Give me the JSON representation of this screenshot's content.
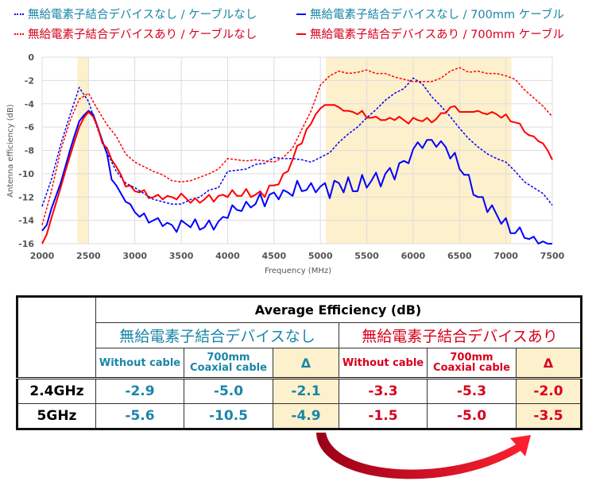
{
  "legend": [
    {
      "label": "無給電素子結合デバイスなし / ケーブルなし",
      "color": "#0000ff",
      "text_color": "#1a86a8",
      "style": "dashed"
    },
    {
      "label": "無給電素子結合デバイスなし / 700mm ケーブル",
      "color": "#0000ff",
      "text_color": "#1a86a8",
      "style": "solid"
    },
    {
      "label": "無給電素子結合デバイスあり / ケーブルなし",
      "color": "#ff0000",
      "text_color": "#d8001c",
      "style": "dashed"
    },
    {
      "label": "無給電素子結合デバイスあり / 700mm ケーブル",
      "color": "#ff0000",
      "text_color": "#d8001c",
      "style": "solid"
    }
  ],
  "chart_data": {
    "type": "line",
    "xlabel": "Frequency (MHz)",
    "ylabel": "Antenna efficiency (dB)",
    "xlim": [
      2000,
      7500
    ],
    "ylim": [
      -16,
      0
    ],
    "x_ticks": [
      "2000",
      "2500",
      "3000",
      "3500",
      "4000",
      "4500",
      "5000",
      "5500",
      "6000",
      "6500",
      "7000",
      "7500"
    ],
    "y_ticks": [
      "0",
      "-2",
      "-4",
      "-6",
      "-8",
      "-10",
      "-12",
      "-14",
      "-16"
    ],
    "grid": true,
    "legend_position": "top",
    "highlight_bands": [
      [
        2380,
        2500
      ],
      [
        5060,
        7060
      ]
    ],
    "highlight_color": "#fdf0cc",
    "series": [
      {
        "name": "無給電素子結合デバイスなし / ケーブルなし",
        "color": "#0000ff",
        "style": "dashed",
        "x": [
          2000,
          2100,
          2200,
          2300,
          2400,
          2500,
          2600,
          2700,
          2800,
          2900,
          3000,
          3100,
          3200,
          3300,
          3400,
          3500,
          3600,
          3700,
          3800,
          3900,
          4000,
          4100,
          4200,
          4300,
          4400,
          4500,
          4600,
          4700,
          4800,
          4900,
          5000,
          5100,
          5200,
          5300,
          5400,
          5500,
          5600,
          5700,
          5800,
          5900,
          6000,
          6100,
          6200,
          6300,
          6400,
          6500,
          6600,
          6700,
          6800,
          6900,
          7000,
          7100,
          7200,
          7300,
          7400,
          7500
        ],
        "y": [
          -12.8,
          -10.5,
          -7.5,
          -5.0,
          -2.6,
          -3.8,
          -6.2,
          -8.2,
          -9.8,
          -10.8,
          -11.2,
          -11.7,
          -12.2,
          -12.4,
          -12.6,
          -12.6,
          -12.2,
          -12.0,
          -11.4,
          -11.2,
          -9.8,
          -9.7,
          -9.6,
          -9.2,
          -9.1,
          -8.6,
          -8.7,
          -8.7,
          -8.8,
          -9.0,
          -8.6,
          -8.2,
          -7.3,
          -6.6,
          -6.0,
          -5.2,
          -4.5,
          -3.7,
          -3.1,
          -2.7,
          -1.8,
          -2.3,
          -3.4,
          -4.2,
          -5.1,
          -6.1,
          -7.0,
          -7.7,
          -8.3,
          -8.7,
          -9.0,
          -9.8,
          -10.7,
          -11.2,
          -11.7,
          -12.7
        ]
      },
      {
        "name": "無給電素子結合デバイスなし / 700mm ケーブル",
        "color": "#0000ff",
        "style": "solid",
        "x": [
          2000,
          2050,
          2100,
          2150,
          2200,
          2250,
          2300,
          2350,
          2400,
          2450,
          2500,
          2550,
          2600,
          2650,
          2700,
          2750,
          2800,
          2850,
          2900,
          2950,
          3000,
          3050,
          3100,
          3150,
          3200,
          3250,
          3300,
          3350,
          3400,
          3450,
          3500,
          3550,
          3600,
          3650,
          3700,
          3750,
          3800,
          3850,
          3900,
          3950,
          4000,
          4050,
          4100,
          4150,
          4200,
          4250,
          4300,
          4350,
          4400,
          4450,
          4500,
          4550,
          4600,
          4650,
          4700,
          4750,
          4800,
          4850,
          4900,
          4950,
          5000,
          5050,
          5100,
          5150,
          5200,
          5250,
          5300,
          5350,
          5400,
          5450,
          5500,
          5550,
          5600,
          5650,
          5700,
          5750,
          5800,
          5850,
          5900,
          5950,
          6000,
          6050,
          6100,
          6150,
          6200,
          6250,
          6300,
          6350,
          6400,
          6450,
          6500,
          6550,
          6600,
          6650,
          6700,
          6750,
          6800,
          6850,
          6900,
          6950,
          7000,
          7050,
          7100,
          7150,
          7200,
          7250,
          7300,
          7350,
          7400,
          7450,
          7500
        ],
        "y": [
          -14.9,
          -14.4,
          -13.0,
          -11.9,
          -10.8,
          -9.4,
          -8.0,
          -6.7,
          -5.5,
          -5.0,
          -4.6,
          -4.9,
          -6.0,
          -7.2,
          -8.3,
          -10.5,
          -11.0,
          -11.7,
          -12.4,
          -12.6,
          -13.3,
          -13.7,
          -13.4,
          -14.2,
          -14.0,
          -13.8,
          -14.5,
          -14.2,
          -14.4,
          -15.0,
          -14.0,
          -14.3,
          -14.6,
          -13.9,
          -14.8,
          -14.6,
          -14.0,
          -14.8,
          -14.1,
          -13.7,
          -13.8,
          -12.7,
          -13.1,
          -13.2,
          -12.4,
          -12.9,
          -12.6,
          -11.7,
          -12.8,
          -11.8,
          -11.6,
          -12.2,
          -11.4,
          -11.6,
          -11.9,
          -10.6,
          -11.5,
          -11.4,
          -10.8,
          -11.6,
          -11.1,
          -10.8,
          -12.1,
          -10.6,
          -10.8,
          -11.6,
          -10.3,
          -11.5,
          -11.5,
          -10.1,
          -11.2,
          -10.6,
          -9.9,
          -11.1,
          -10.0,
          -9.5,
          -10.5,
          -9.1,
          -8.9,
          -9.1,
          -7.9,
          -7.3,
          -7.8,
          -7.1,
          -7.1,
          -7.7,
          -7.2,
          -7.7,
          -8.7,
          -8.2,
          -9.6,
          -10.1,
          -10.1,
          -11.8,
          -12.0,
          -12.0,
          -13.3,
          -12.7,
          -13.5,
          -14.3,
          -13.8,
          -15.1,
          -15.1,
          -14.6,
          -15.5,
          -15.6,
          -15.4,
          -16.0,
          -15.8,
          -16.0,
          -16.0
        ]
      },
      {
        "name": "無給電素子結合デバイスあり / ケーブルなし",
        "color": "#ff0000",
        "style": "dashed",
        "x": [
          2000,
          2100,
          2200,
          2300,
          2400,
          2500,
          2600,
          2700,
          2800,
          2900,
          3000,
          3100,
          3200,
          3300,
          3400,
          3500,
          3600,
          3700,
          3800,
          3900,
          4000,
          4100,
          4200,
          4300,
          4400,
          4500,
          4600,
          4700,
          4800,
          4900,
          5000,
          5100,
          5200,
          5300,
          5400,
          5500,
          5600,
          5700,
          5800,
          5900,
          6000,
          6100,
          6200,
          6300,
          6400,
          6500,
          6600,
          6700,
          6800,
          6900,
          7000,
          7100,
          7200,
          7300,
          7400,
          7500
        ],
        "y": [
          -14.4,
          -11.5,
          -8.0,
          -5.5,
          -3.6,
          -3.1,
          -4.5,
          -5.8,
          -6.8,
          -8.3,
          -9.0,
          -9.4,
          -9.8,
          -10.1,
          -10.6,
          -10.7,
          -10.6,
          -10.3,
          -10.0,
          -9.6,
          -8.7,
          -8.8,
          -8.9,
          -8.8,
          -8.9,
          -9.0,
          -8.6,
          -7.8,
          -6.2,
          -4.6,
          -2.4,
          -1.6,
          -1.2,
          -1.4,
          -1.3,
          -1.1,
          -1.4,
          -1.4,
          -1.7,
          -1.9,
          -2.1,
          -2.1,
          -2.1,
          -1.8,
          -1.2,
          -0.9,
          -1.3,
          -1.2,
          -1.4,
          -1.4,
          -1.6,
          -1.9,
          -2.8,
          -3.5,
          -4.2,
          -5.1
        ]
      },
      {
        "name": "無給電素子結合デバイスあり / 700mm ケーブル",
        "color": "#ff0000",
        "style": "solid",
        "x": [
          2000,
          2050,
          2100,
          2150,
          2200,
          2250,
          2300,
          2350,
          2400,
          2450,
          2500,
          2550,
          2600,
          2650,
          2700,
          2750,
          2800,
          2850,
          2900,
          2950,
          3000,
          3050,
          3100,
          3150,
          3200,
          3250,
          3300,
          3350,
          3400,
          3450,
          3500,
          3550,
          3600,
          3650,
          3700,
          3750,
          3800,
          3850,
          3900,
          3950,
          4000,
          4050,
          4100,
          4150,
          4200,
          4250,
          4300,
          4350,
          4400,
          4450,
          4500,
          4550,
          4600,
          4650,
          4700,
          4750,
          4800,
          4850,
          4900,
          4950,
          5000,
          5050,
          5100,
          5150,
          5200,
          5250,
          5300,
          5350,
          5400,
          5450,
          5500,
          5550,
          5600,
          5650,
          5700,
          5750,
          5800,
          5850,
          5900,
          5950,
          6000,
          6050,
          6100,
          6150,
          6200,
          6250,
          6300,
          6350,
          6400,
          6450,
          6500,
          6550,
          6600,
          6650,
          6700,
          6750,
          6800,
          6850,
          6900,
          6950,
          7000,
          7050,
          7100,
          7150,
          7200,
          7250,
          7300,
          7350,
          7400,
          7450,
          7500
        ],
        "y": [
          -16.0,
          -15.2,
          -13.8,
          -12.5,
          -11.2,
          -9.8,
          -8.5,
          -7.2,
          -6.0,
          -5.2,
          -4.7,
          -5.1,
          -6.0,
          -7.4,
          -7.8,
          -8.8,
          -9.4,
          -10.1,
          -11.1,
          -11.0,
          -11.5,
          -11.6,
          -11.4,
          -12.1,
          -12.0,
          -11.8,
          -12.2,
          -11.9,
          -12.0,
          -12.2,
          -11.7,
          -12.1,
          -12.5,
          -12.1,
          -12.5,
          -12.2,
          -11.8,
          -12.4,
          -11.9,
          -11.8,
          -12.0,
          -11.4,
          -11.9,
          -11.9,
          -11.3,
          -12.0,
          -11.8,
          -11.5,
          -12.0,
          -11.0,
          -11.0,
          -10.9,
          -10.0,
          -9.8,
          -8.8,
          -7.6,
          -7.4,
          -6.2,
          -5.7,
          -4.9,
          -4.4,
          -4.1,
          -4.1,
          -4.1,
          -4.3,
          -4.6,
          -4.6,
          -4.7,
          -4.9,
          -4.6,
          -5.2,
          -5.2,
          -5.1,
          -5.4,
          -5.4,
          -5.2,
          -5.4,
          -5.1,
          -5.4,
          -5.7,
          -5.2,
          -5.4,
          -5.5,
          -5.2,
          -5.6,
          -5.3,
          -4.8,
          -4.8,
          -4.3,
          -4.2,
          -4.7,
          -4.7,
          -4.7,
          -4.7,
          -4.6,
          -4.8,
          -4.9,
          -4.7,
          -4.9,
          -5.2,
          -4.9,
          -5.5,
          -5.6,
          -5.7,
          -6.4,
          -6.7,
          -6.8,
          -7.2,
          -7.4,
          -8.0,
          -8.8
        ]
      }
    ]
  },
  "table": {
    "title": "Average Efficiency (dB)",
    "group_without": "無給電素子結合デバイスなし",
    "group_with": "無給電素子結合デバイスあり",
    "col_without_cable": "Without cable",
    "col_coax_1": "700mm",
    "col_coax_2": "Coaxial cable",
    "col_delta": "Δ",
    "rows": [
      {
        "band": "2.4GHz",
        "without": [
          "-2.9",
          "-5.0",
          "-2.1"
        ],
        "with": [
          "-3.3",
          "-5.3",
          "-2.0"
        ]
      },
      {
        "band": "5GHz",
        "without": [
          "-5.6",
          "-10.5",
          "-4.9"
        ],
        "with": [
          "-1.5",
          "-5.0",
          "-3.5"
        ]
      }
    ]
  },
  "colors": {
    "teal_text": "#1a86a8",
    "red_text": "#d8001c",
    "highlight": "#fdf0cc",
    "arrow": "#d0101c"
  }
}
